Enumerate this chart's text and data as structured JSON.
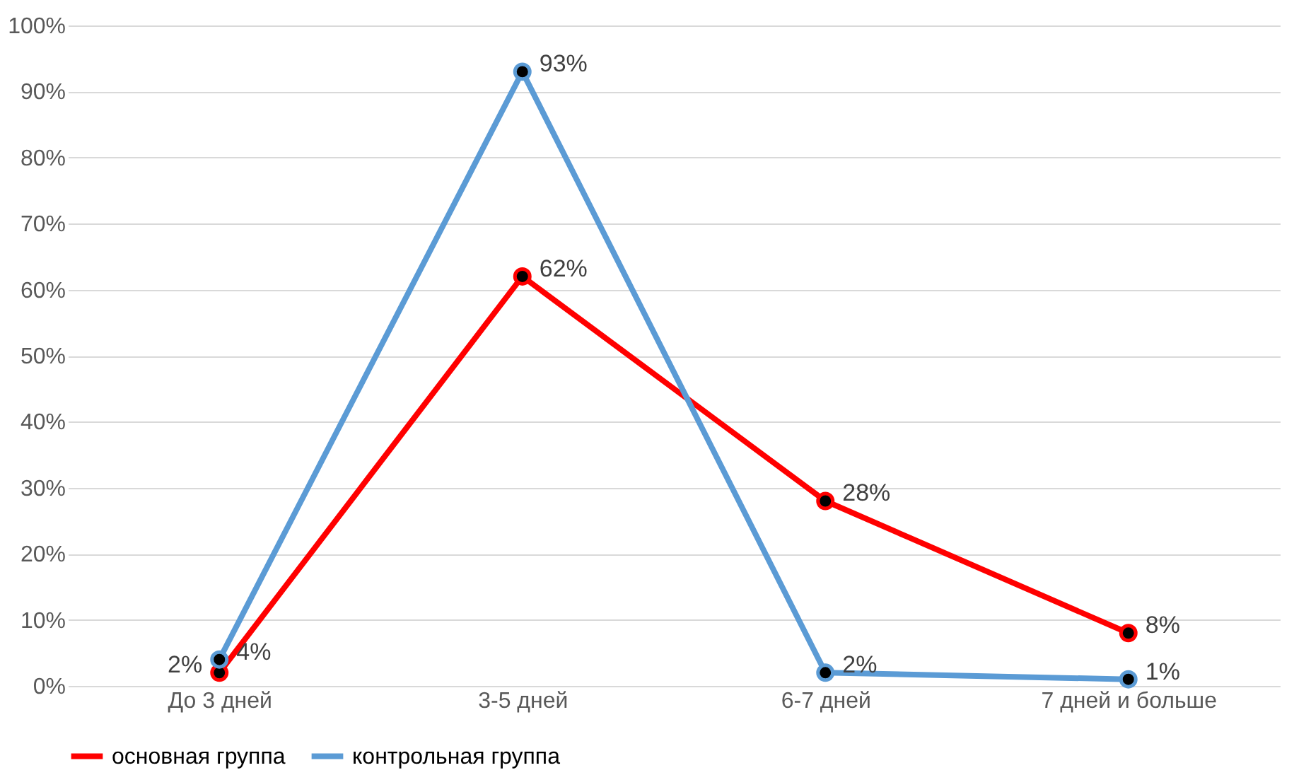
{
  "chart_data": {
    "type": "line",
    "categories": [
      "До 3 дней",
      "3-5 дней",
      "6-7 дней",
      "7 дней и больше"
    ],
    "series": [
      {
        "name": "основная группа",
        "color": "#ff0000",
        "values": [
          2,
          62,
          28,
          8
        ],
        "value_labels": [
          "2%",
          "62%",
          "28%",
          "8%"
        ]
      },
      {
        "name": "контрольная группа",
        "color": "#5b9bd5",
        "values": [
          4,
          93,
          2,
          1
        ],
        "value_labels": [
          "4%",
          "93%",
          "2%",
          "1%"
        ]
      }
    ],
    "ylim": [
      0,
      100
    ],
    "yticks": [
      {
        "value": 0,
        "label": "0%"
      },
      {
        "value": 10,
        "label": "10%"
      },
      {
        "value": 20,
        "label": "20%"
      },
      {
        "value": 30,
        "label": "30%"
      },
      {
        "value": 40,
        "label": "40%"
      },
      {
        "value": 50,
        "label": "50%"
      },
      {
        "value": 60,
        "label": "60%"
      },
      {
        "value": 70,
        "label": "70%"
      },
      {
        "value": 80,
        "label": "80%"
      },
      {
        "value": 90,
        "label": "90%"
      },
      {
        "value": 100,
        "label": "100%"
      }
    ],
    "grid": "y",
    "legend": "bottom",
    "marker": "circle",
    "line_style": "solid"
  }
}
